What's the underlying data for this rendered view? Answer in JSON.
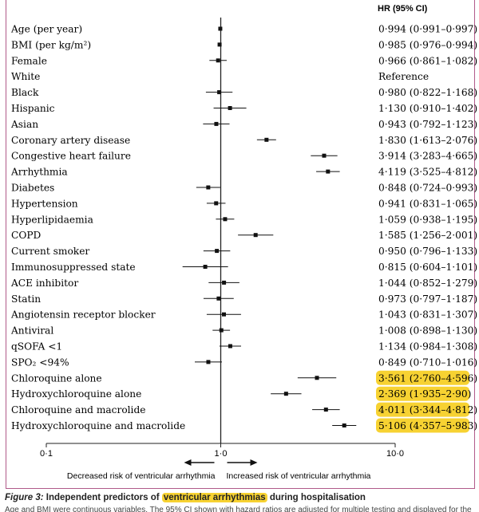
{
  "chart_data": {
    "type": "forest",
    "header": "HR (95% CI)",
    "x_ticks": [
      "0·1",
      "1·0",
      "10·0"
    ],
    "x_scale": "log",
    "xlim": [
      0.1,
      10.0
    ],
    "reference_line": 1.0,
    "left_direction_label": "Decreased risk of ventricular arrhythmia",
    "right_direction_label": "Increased risk of ventricular arrhythmia",
    "rows": [
      {
        "label": "Age (per year)",
        "hr": 0.994,
        "lo": 0.991,
        "hi": 0.997,
        "text": "0·994 (0·991–0·997)",
        "highlight": false
      },
      {
        "label": "BMI (per kg/m²)",
        "hr": 0.985,
        "lo": 0.976,
        "hi": 0.994,
        "text": "0·985 (0·976–0·994)",
        "highlight": false
      },
      {
        "label": "Female",
        "hr": 0.966,
        "lo": 0.861,
        "hi": 1.082,
        "text": "0·966 (0·861–1·082)",
        "highlight": false
      },
      {
        "label": "White",
        "hr": null,
        "lo": null,
        "hi": null,
        "text": "Reference",
        "highlight": false
      },
      {
        "label": "Black",
        "hr": 0.98,
        "lo": 0.822,
        "hi": 1.168,
        "text": "0·980 (0·822–1·168)",
        "highlight": false
      },
      {
        "label": "Hispanic",
        "hr": 1.13,
        "lo": 0.91,
        "hi": 1.402,
        "text": "1·130 (0·910–1·402)",
        "highlight": false
      },
      {
        "label": "Asian",
        "hr": 0.943,
        "lo": 0.792,
        "hi": 1.123,
        "text": "0·943 (0·792–1·123)",
        "highlight": false
      },
      {
        "label": "Coronary artery disease",
        "hr": 1.83,
        "lo": 1.613,
        "hi": 2.076,
        "text": "1·830 (1·613–2·076)",
        "highlight": false
      },
      {
        "label": "Congestive heart failure",
        "hr": 3.914,
        "lo": 3.283,
        "hi": 4.665,
        "text": "3·914 (3·283–4·665)",
        "highlight": false
      },
      {
        "label": "Arrhythmia",
        "hr": 4.119,
        "lo": 3.525,
        "hi": 4.812,
        "text": "4·119 (3·525–4·812)",
        "highlight": false
      },
      {
        "label": "Diabetes",
        "hr": 0.848,
        "lo": 0.724,
        "hi": 0.993,
        "text": "0·848 (0·724–0·993)",
        "highlight": false
      },
      {
        "label": "Hypertension",
        "hr": 0.941,
        "lo": 0.831,
        "hi": 1.065,
        "text": "0·941 (0·831–1·065)",
        "highlight": false
      },
      {
        "label": "Hyperlipidaemia",
        "hr": 1.059,
        "lo": 0.938,
        "hi": 1.195,
        "text": "1·059 (0·938–1·195)",
        "highlight": false
      },
      {
        "label": "COPD",
        "hr": 1.585,
        "lo": 1.256,
        "hi": 2.001,
        "text": "1·585 (1·256–2·001)",
        "highlight": false
      },
      {
        "label": "Current smoker",
        "hr": 0.95,
        "lo": 0.796,
        "hi": 1.133,
        "text": "0·950 (0·796–1·133)",
        "highlight": false
      },
      {
        "label": "Immunosuppressed state",
        "hr": 0.815,
        "lo": 0.604,
        "hi": 1.101,
        "text": "0·815 (0·604–1·101)",
        "highlight": false
      },
      {
        "label": "ACE inhibitor",
        "hr": 1.044,
        "lo": 0.852,
        "hi": 1.279,
        "text": "1·044 (0·852–1·279)",
        "highlight": false
      },
      {
        "label": "Statin",
        "hr": 0.973,
        "lo": 0.797,
        "hi": 1.187,
        "text": "0·973 (0·797–1·187)",
        "highlight": false
      },
      {
        "label": "Angiotensin receptor blocker",
        "hr": 1.043,
        "lo": 0.831,
        "hi": 1.307,
        "text": "1·043 (0·831–1·307)",
        "highlight": false
      },
      {
        "label": "Antiviral",
        "hr": 1.008,
        "lo": 0.898,
        "hi": 1.13,
        "text": "1·008 (0·898–1·130)",
        "highlight": false
      },
      {
        "label": "qSOFA <1",
        "hr": 1.134,
        "lo": 0.984,
        "hi": 1.308,
        "text": "1·134 (0·984–1·308)",
        "highlight": false
      },
      {
        "label": "SPO₂ <94%",
        "hr": 0.849,
        "lo": 0.71,
        "hi": 1.016,
        "text": "0·849 (0·710–1·016)",
        "highlight": false
      },
      {
        "label": "Chloroquine alone",
        "hr": 3.561,
        "lo": 2.76,
        "hi": 4.596,
        "text": "3·561 (2·760–4·596)",
        "highlight": true
      },
      {
        "label": "Hydroxychloroquine alone",
        "hr": 2.369,
        "lo": 1.935,
        "hi": 2.9,
        "text": "2·369 (1·935–2·90)",
        "highlight": true
      },
      {
        "label": "Chloroquine and macrolide",
        "hr": 4.011,
        "lo": 3.344,
        "hi": 4.812,
        "text": "4·011 (3·344–4·812)",
        "highlight": true
      },
      {
        "label": "Hydroxychloroquine and macrolide",
        "hr": 5.106,
        "lo": 4.357,
        "hi": 5.983,
        "text": "5·106 (4·357–5·983)",
        "highlight": true
      }
    ]
  },
  "caption": {
    "figure_label": "Figure 3:",
    "before": "Independent predictors of ",
    "highlighted": "ventricular arrhythmias",
    "after": " during hospitalisation"
  },
  "note": "Age and BMI were continuous variables. The 95% CI shown with hazard ratios are adjusted for multiple testing and displayed for the study population."
}
